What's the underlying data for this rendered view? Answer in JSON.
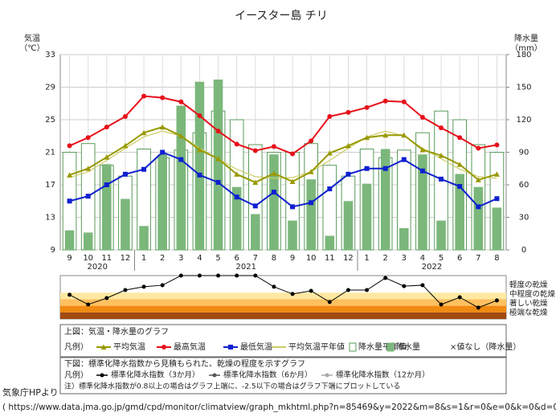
{
  "chart_data": [
    {
      "type": "combo",
      "title": "イースター島 チリ",
      "y_label": "気温",
      "y_unit": "（℃）",
      "y2_label": "降水量",
      "y2_unit": "（mm）",
      "categories": [
        "9",
        "10",
        "11",
        "12",
        "1",
        "2",
        "3",
        "4",
        "5",
        "6",
        "7",
        "8",
        "9",
        "10",
        "11",
        "12",
        "1",
        "2",
        "3",
        "4",
        "5",
        "6",
        "7",
        "8"
      ],
      "years": [
        "2020",
        "2021",
        "2022"
      ],
      "ylim": [
        9,
        33
      ],
      "yticks": [
        9,
        13,
        17,
        21,
        25,
        29,
        33
      ],
      "y2lim": [
        0,
        180
      ],
      "y2ticks": [
        0,
        30,
        60,
        90,
        120,
        150,
        180
      ],
      "grid": true,
      "legend_title": "上図：気温・降水量のグラフ",
      "legend_prefix": "凡例）",
      "legend_note": "×値なし（降水量）",
      "series": [
        {
          "name": "降水量平年値",
          "type": "bar",
          "axis": "y2",
          "color": "#5a9a5a",
          "fill": "none",
          "values": [
            90,
            98,
            78,
            68,
            93,
            85,
            92,
            108,
            128,
            120,
            97,
            90,
            90,
            98,
            78,
            68,
            93,
            85,
            92,
            108,
            128,
            120,
            97,
            90
          ]
        },
        {
          "name": "降水量",
          "type": "bar",
          "axis": "y2",
          "color": "#7bb77b",
          "fill": "solid",
          "values": [
            18,
            16,
            79,
            47,
            22,
            88,
            133,
            155,
            157,
            58,
            33,
            88,
            27,
            65,
            13,
            45,
            61,
            93,
            20,
            88,
            27,
            70,
            58,
            39
          ]
        },
        {
          "name": "平均気温平年値",
          "type": "line",
          "color": "#cccc66",
          "marker": "none",
          "values": [
            17.9,
            18.6,
            20.0,
            21.5,
            22.9,
            23.6,
            23.0,
            21.5,
            20.2,
            18.9,
            18.0,
            17.8,
            17.9,
            18.6,
            20.0,
            21.5,
            22.9,
            23.6,
            23.0,
            21.5,
            20.2,
            18.9,
            18.0,
            17.8
          ]
        },
        {
          "name": "平均気温",
          "type": "line",
          "color": "#999900",
          "marker": "triangle",
          "values": [
            18.2,
            19.0,
            20.4,
            21.8,
            23.4,
            24.1,
            23.0,
            21.3,
            20.2,
            18.3,
            17.3,
            18.4,
            17.4,
            18.6,
            20.9,
            21.8,
            22.8,
            23.1,
            23.1,
            21.3,
            20.6,
            19.5,
            17.6,
            18.3
          ]
        },
        {
          "name": "最高気温",
          "type": "line",
          "color": "#e8101a",
          "marker": "circle",
          "values": [
            21.8,
            22.8,
            24.1,
            25.4,
            27.9,
            27.7,
            27.2,
            25.5,
            23.6,
            22.0,
            21.2,
            21.7,
            20.8,
            22.4,
            25.4,
            25.9,
            26.5,
            27.3,
            27.2,
            25.3,
            24.0,
            22.8,
            21.5,
            21.9
          ]
        },
        {
          "name": "最低気温",
          "type": "line",
          "color": "#1020d0",
          "marker": "square",
          "values": [
            15.0,
            15.6,
            17.0,
            18.3,
            18.9,
            21.0,
            20.1,
            18.2,
            17.3,
            15.5,
            14.4,
            16.1,
            14.3,
            14.8,
            16.5,
            18.3,
            19.0,
            19.0,
            20.1,
            18.7,
            17.7,
            16.8,
            14.3,
            15.3
          ]
        }
      ]
    },
    {
      "type": "line",
      "title": "下図：標準化降水指数から見積もられた、乾燥の程度を示すグラフ",
      "legend_prefix": "凡例）",
      "note": "注）標準化降水指数が0.8以上の場合はグラフ上端に、-2.5以下の場合はグラフ下端にプロットしている",
      "ylim": [
        -2.5,
        0.8
      ],
      "bands": [
        {
          "label": "軽度の乾燥",
          "from": -0.5,
          "to": -1.0,
          "color": "#ffe8a0"
        },
        {
          "label": "中程度の乾燥",
          "from": -1.0,
          "to": -1.5,
          "color": "#ffc060"
        },
        {
          "label": "著しい乾燥",
          "from": -1.5,
          "to": -2.0,
          "color": "#f08a10"
        },
        {
          "label": "極端な乾燥",
          "from": -2.0,
          "to": -2.5,
          "color": "#a04a10"
        }
      ],
      "series": [
        {
          "name": "標準化降水指数（3か月）",
          "color": "#000000",
          "values": [
            -0.66,
            -1.4,
            -0.91,
            -0.3,
            -0.05,
            0.07,
            0.8,
            0.8,
            0.8,
            0.8,
            0.8,
            -0.05,
            -0.6,
            -0.36,
            -1.21,
            -0.3,
            -0.3,
            0.62,
            0.0,
            0.07,
            -1.4,
            -0.85,
            -1.64,
            -1.09
          ]
        },
        {
          "name": "標準化降水指数（6か月）",
          "color": "#555555",
          "values": [
            null,
            null,
            null,
            null,
            null,
            null,
            null,
            null,
            null,
            null,
            null,
            null,
            null,
            null,
            null,
            null,
            null,
            null,
            null,
            null,
            null,
            null,
            null,
            null
          ]
        },
        {
          "name": "標準化降水指数（12か月）",
          "color": "#aaaaaa",
          "values": [
            null,
            null,
            null,
            null,
            null,
            null,
            null,
            null,
            null,
            null,
            null,
            null,
            null,
            null,
            null,
            null,
            null,
            null,
            null,
            null,
            null,
            null,
            null,
            null
          ]
        }
      ]
    }
  ],
  "footer": {
    "source": "気象庁HPより",
    "url": "( https://www.data.jma.go.jp/gmd/cpd/monitor/climatview/graph_mkhtml.php?n=85469&y=2022&m=8&s=1&r=0&e=0&k=0&d=0)"
  }
}
